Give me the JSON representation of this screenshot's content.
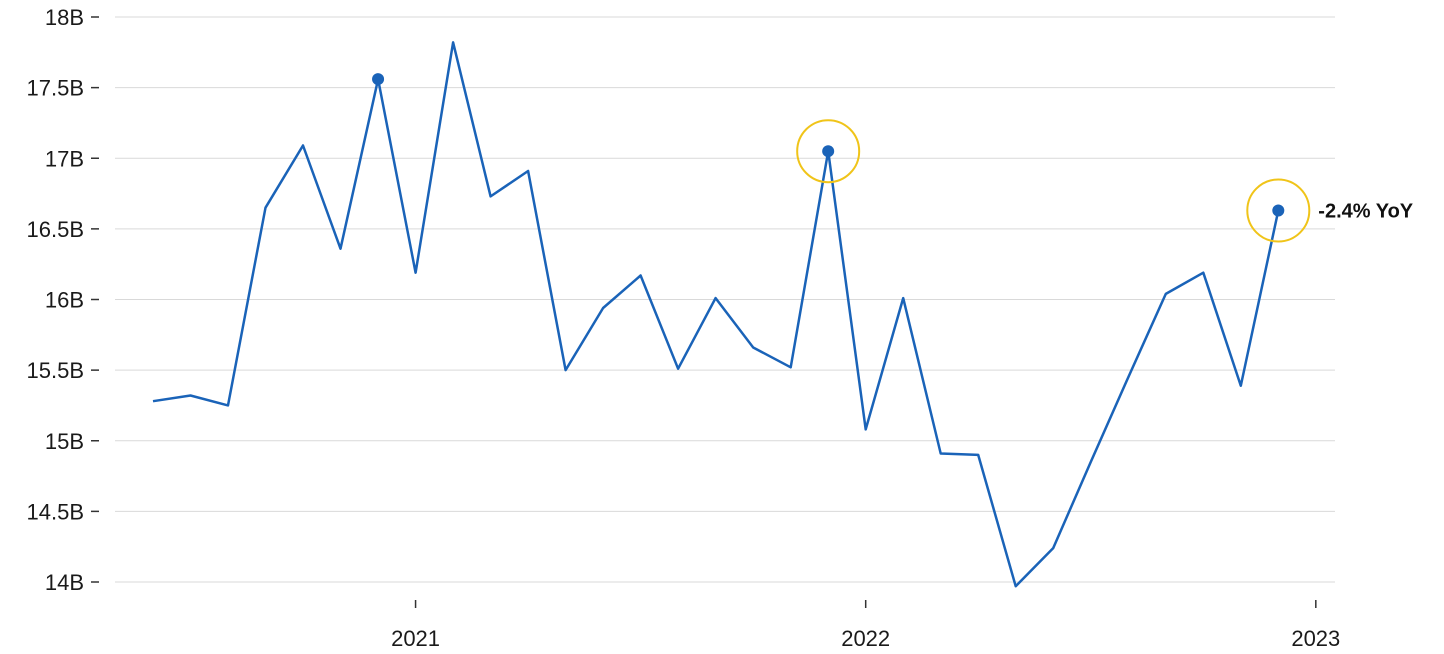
{
  "chart_data": {
    "type": "line",
    "title": "",
    "xlabel": "",
    "ylabel": "",
    "ylim": [
      14,
      18
    ],
    "grid": true,
    "y_ticks": [
      {
        "value": 14,
        "label": "14B"
      },
      {
        "value": 14.5,
        "label": "14.5B"
      },
      {
        "value": 15,
        "label": "15B"
      },
      {
        "value": 15.5,
        "label": "15.5B"
      },
      {
        "value": 16,
        "label": "16B"
      },
      {
        "value": 16.5,
        "label": "16.5B"
      },
      {
        "value": 17,
        "label": "17B"
      },
      {
        "value": 17.5,
        "label": "17.5B"
      },
      {
        "value": 18,
        "label": "18B"
      }
    ],
    "x_ticks": [
      {
        "value": "2021-01",
        "label": "2021"
      },
      {
        "value": "2022-01",
        "label": "2022"
      },
      {
        "value": "2023-01",
        "label": "2023"
      }
    ],
    "series": [
      {
        "color": "#1a63b8",
        "points": [
          {
            "x": "2020-06",
            "y": 15.28
          },
          {
            "x": "2020-07",
            "y": 15.32
          },
          {
            "x": "2020-08",
            "y": 15.25
          },
          {
            "x": "2020-09",
            "y": 16.65
          },
          {
            "x": "2020-10",
            "y": 17.09
          },
          {
            "x": "2020-11",
            "y": 16.36
          },
          {
            "x": "2020-12",
            "y": 17.56
          },
          {
            "x": "2021-01",
            "y": 16.19
          },
          {
            "x": "2021-02",
            "y": 17.82
          },
          {
            "x": "2021-03",
            "y": 16.73
          },
          {
            "x": "2021-04",
            "y": 16.91
          },
          {
            "x": "2021-05",
            "y": 15.5
          },
          {
            "x": "2021-06",
            "y": 15.94
          },
          {
            "x": "2021-07",
            "y": 16.17
          },
          {
            "x": "2021-08",
            "y": 15.51
          },
          {
            "x": "2021-09",
            "y": 16.01
          },
          {
            "x": "2021-10",
            "y": 15.66
          },
          {
            "x": "2021-11",
            "y": 15.52
          },
          {
            "x": "2021-12",
            "y": 17.05
          },
          {
            "x": "2022-01",
            "y": 15.08
          },
          {
            "x": "2022-02",
            "y": 16.01
          },
          {
            "x": "2022-03",
            "y": 14.91
          },
          {
            "x": "2022-04",
            "y": 14.9
          },
          {
            "x": "2022-05",
            "y": 13.97
          },
          {
            "x": "2022-06",
            "y": 14.24
          },
          {
            "x": "2022-07",
            "y": 14.85
          },
          {
            "x": "2022-08",
            "y": 15.45
          },
          {
            "x": "2022-09",
            "y": 16.04
          },
          {
            "x": "2022-10",
            "y": 16.19
          },
          {
            "x": "2022-11",
            "y": 15.39
          },
          {
            "x": "2022-12",
            "y": 16.63
          }
        ]
      }
    ],
    "markers": [
      {
        "index": 6,
        "highlight": false
      },
      {
        "index": 18,
        "highlight": true
      },
      {
        "index": 30,
        "highlight": true,
        "label": "-2.4% YoY"
      }
    ],
    "colors": {
      "line": "#1a63b8",
      "highlight_ring": "#f0c419",
      "grid": "#d9d9d9",
      "text": "#1a1a1a"
    }
  }
}
